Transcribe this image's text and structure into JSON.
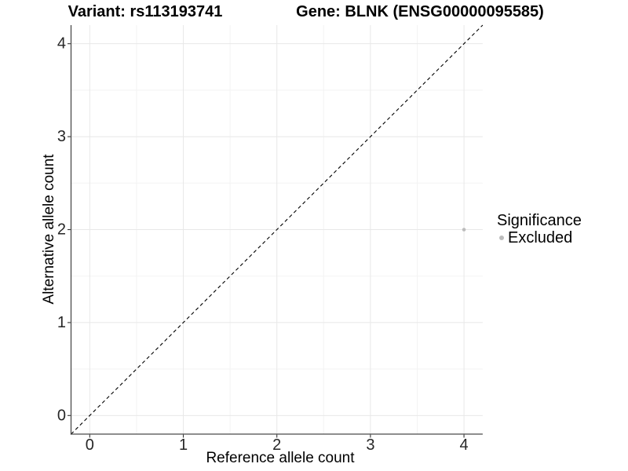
{
  "chart_data": {
    "type": "scatter",
    "title_variant": "Variant: rs113193741",
    "title_gene": "Gene: BLNK (ENSG00000095585)",
    "xlabel": "Reference allele count",
    "ylabel": "Alternative allele count",
    "xlim": [
      -0.2,
      4.2
    ],
    "ylim": [
      -0.2,
      4.2
    ],
    "xticks": [
      0,
      1,
      2,
      3,
      4
    ],
    "yticks": [
      0,
      1,
      2,
      3,
      4
    ],
    "xminor": [
      0.5,
      1.5,
      2.5,
      3.5
    ],
    "yminor": [
      0.5,
      1.5,
      2.5,
      3.5
    ],
    "grid": "major and minor gridlines, light gray on white",
    "identity_line": {
      "style": "dashed",
      "x1": -0.2,
      "y1": -0.2,
      "x2": 4.2,
      "y2": 4.2,
      "color": "#000000"
    },
    "series": [
      {
        "name": "Excluded",
        "color": "#bcbcbc",
        "point_radius": 2.3,
        "points": [
          {
            "x": 4,
            "y": 2
          }
        ]
      }
    ],
    "legend": {
      "title": "Significance",
      "position": "right",
      "items": [
        {
          "label": "Excluded",
          "color": "#bcbcbc"
        }
      ]
    },
    "colors": {
      "background": "#ffffff",
      "grid_major": "#e8e8e8",
      "grid_minor": "#f3f3f3",
      "axis_line": "#4a4a4a",
      "tick_mark": "#333333",
      "tick_label": "#262626",
      "title_text": "#000000"
    }
  }
}
